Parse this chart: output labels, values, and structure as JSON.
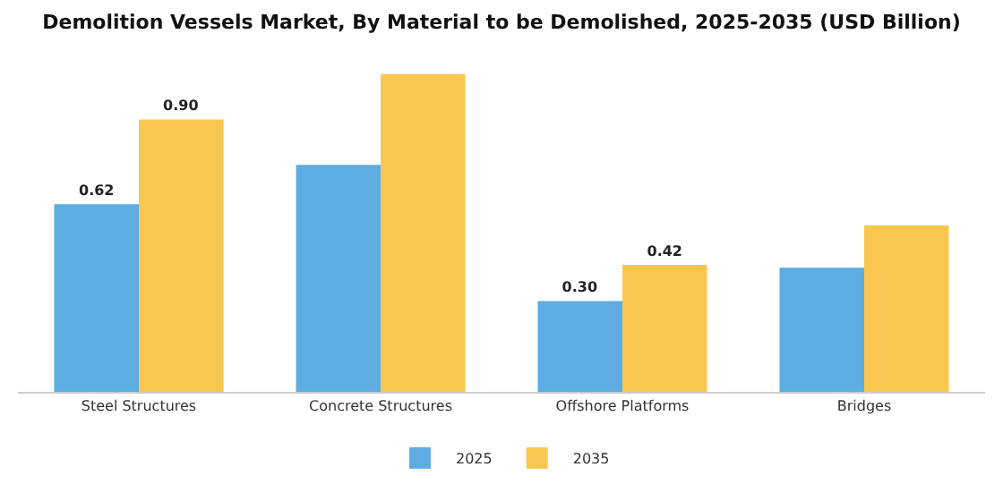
{
  "chart_data": {
    "type": "bar",
    "title": "Demolition Vessels Market, By Material to be Demolished, 2025-2035 (USD Billion)",
    "categories": [
      "Steel Structures",
      "Concrete Structures",
      "Offshore Platforms",
      "Bridges"
    ],
    "series": [
      {
        "name": "2025",
        "color": "#5dade2",
        "values": [
          0.62,
          0.75,
          0.3,
          0.41
        ],
        "value_labels": [
          "0.62",
          null,
          "0.30",
          null
        ]
      },
      {
        "name": "2035",
        "color": "#f9c74f",
        "values": [
          0.9,
          1.05,
          0.42,
          0.55
        ],
        "value_labels": [
          "0.90",
          null,
          "0.42",
          null
        ]
      }
    ],
    "legend": "bottom",
    "grid": false
  }
}
